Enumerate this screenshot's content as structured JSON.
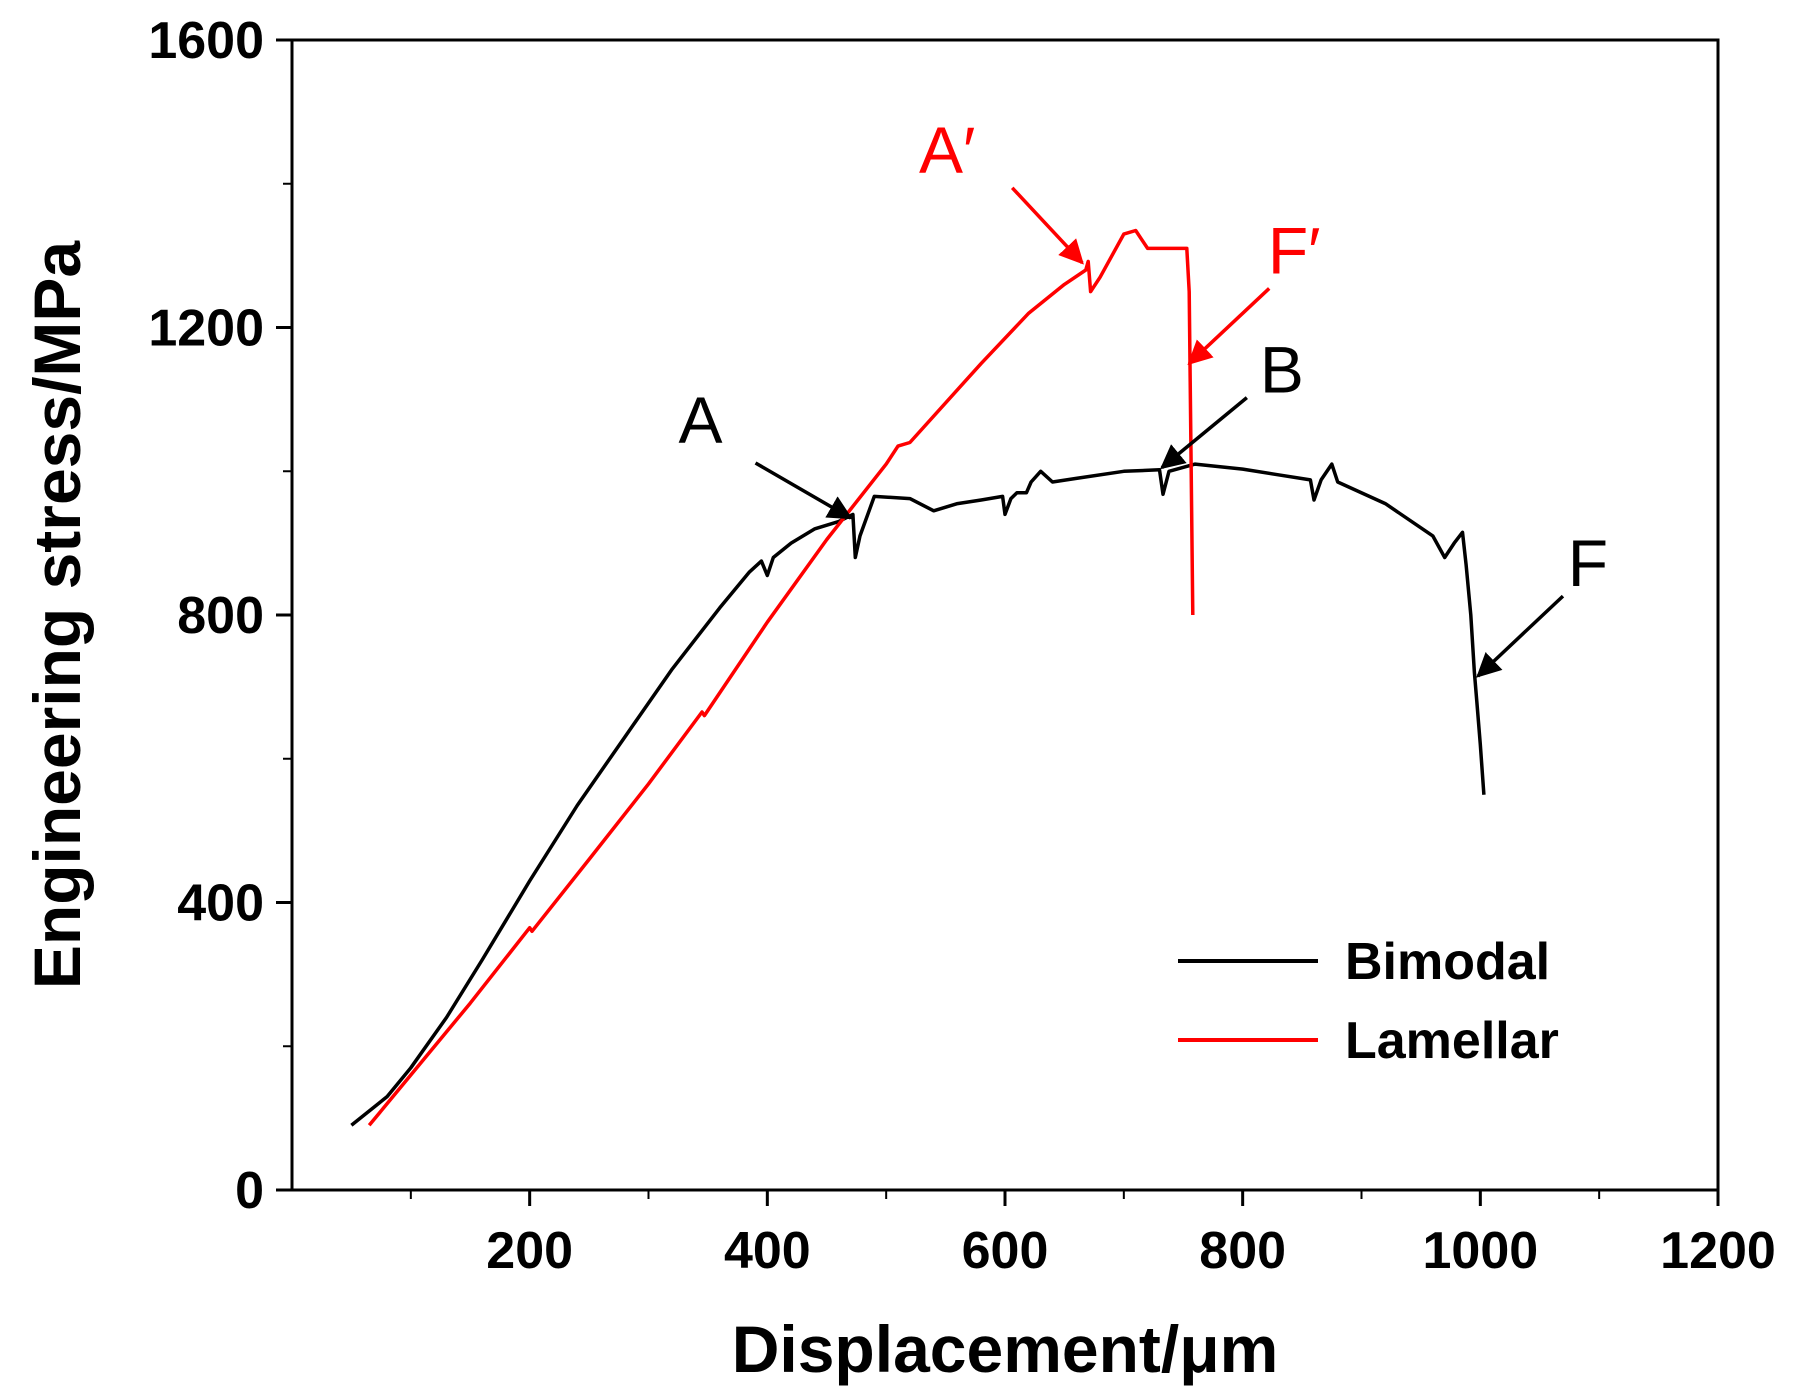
{
  "chart_data": {
    "type": "line",
    "title": "",
    "xlabel": "Displacement/μm",
    "ylabel": "Engineering stress/MPa",
    "xlim": [
      0,
      1200
    ],
    "ylim": [
      0,
      1600
    ],
    "x_major_ticks": [
      200,
      400,
      600,
      800,
      1000,
      1200
    ],
    "x_minor_ticks": [
      100,
      300,
      500,
      700,
      900,
      1100
    ],
    "y_major_ticks": [
      0,
      400,
      800,
      1200,
      1600
    ],
    "y_minor_ticks": [
      200,
      600,
      1000,
      1400
    ],
    "grid": false,
    "legend_position": "bottom-right",
    "series": [
      {
        "name": "Bimodal",
        "color": "#000000",
        "points": [
          [
            50,
            90
          ],
          [
            80,
            130
          ],
          [
            100,
            170
          ],
          [
            130,
            240
          ],
          [
            160,
            320
          ],
          [
            200,
            430
          ],
          [
            240,
            535
          ],
          [
            280,
            630
          ],
          [
            320,
            725
          ],
          [
            360,
            810
          ],
          [
            385,
            860
          ],
          [
            395,
            875
          ],
          [
            400,
            855
          ],
          [
            405,
            880
          ],
          [
            420,
            900
          ],
          [
            440,
            920
          ],
          [
            460,
            930
          ],
          [
            472,
            940
          ],
          [
            474,
            880
          ],
          [
            478,
            910
          ],
          [
            490,
            965
          ],
          [
            520,
            962
          ],
          [
            540,
            945
          ],
          [
            560,
            955
          ],
          [
            580,
            960
          ],
          [
            598,
            965
          ],
          [
            600,
            940
          ],
          [
            605,
            962
          ],
          [
            610,
            970
          ],
          [
            618,
            970
          ],
          [
            622,
            985
          ],
          [
            630,
            1000
          ],
          [
            640,
            985
          ],
          [
            660,
            990
          ],
          [
            700,
            1000
          ],
          [
            730,
            1002
          ],
          [
            733,
            968
          ],
          [
            738,
            1000
          ],
          [
            760,
            1010
          ],
          [
            800,
            1003
          ],
          [
            830,
            995
          ],
          [
            857,
            988
          ],
          [
            860,
            960
          ],
          [
            866,
            988
          ],
          [
            875,
            1010
          ],
          [
            880,
            985
          ],
          [
            920,
            955
          ],
          [
            960,
            910
          ],
          [
            970,
            880
          ],
          [
            978,
            900
          ],
          [
            985,
            915
          ],
          [
            988,
            870
          ],
          [
            992,
            800
          ],
          [
            995,
            720
          ],
          [
            997,
            680
          ],
          [
            1000,
            620
          ],
          [
            1003,
            550
          ]
        ]
      },
      {
        "name": "Lamellar",
        "color": "#ff0000",
        "points": [
          [
            65,
            90
          ],
          [
            100,
            160
          ],
          [
            150,
            260
          ],
          [
            200,
            365
          ],
          [
            202,
            360
          ],
          [
            250,
            460
          ],
          [
            300,
            565
          ],
          [
            345,
            665
          ],
          [
            347,
            660
          ],
          [
            400,
            790
          ],
          [
            450,
            905
          ],
          [
            500,
            1010
          ],
          [
            510,
            1035
          ],
          [
            520,
            1040
          ],
          [
            580,
            1150
          ],
          [
            620,
            1220
          ],
          [
            650,
            1260
          ],
          [
            668,
            1280
          ],
          [
            670,
            1292
          ],
          [
            672,
            1250
          ],
          [
            680,
            1270
          ],
          [
            700,
            1330
          ],
          [
            710,
            1335
          ],
          [
            720,
            1310
          ],
          [
            753,
            1310
          ],
          [
            755,
            1250
          ],
          [
            756,
            1100
          ],
          [
            757,
            950
          ],
          [
            758,
            800
          ]
        ]
      }
    ],
    "annotations": [
      {
        "text": "A",
        "color": "#000000",
        "target": [
          470,
          935
        ]
      },
      {
        "text": "B",
        "color": "#000000",
        "target": [
          732,
          1005
        ]
      },
      {
        "text": "F",
        "color": "#000000",
        "target": [
          998,
          715
        ]
      },
      {
        "text": "A′",
        "color": "#ff0000",
        "target": [
          665,
          1290
        ]
      },
      {
        "text": "F′",
        "color": "#ff0000",
        "target": [
          755,
          1150
        ]
      }
    ]
  }
}
